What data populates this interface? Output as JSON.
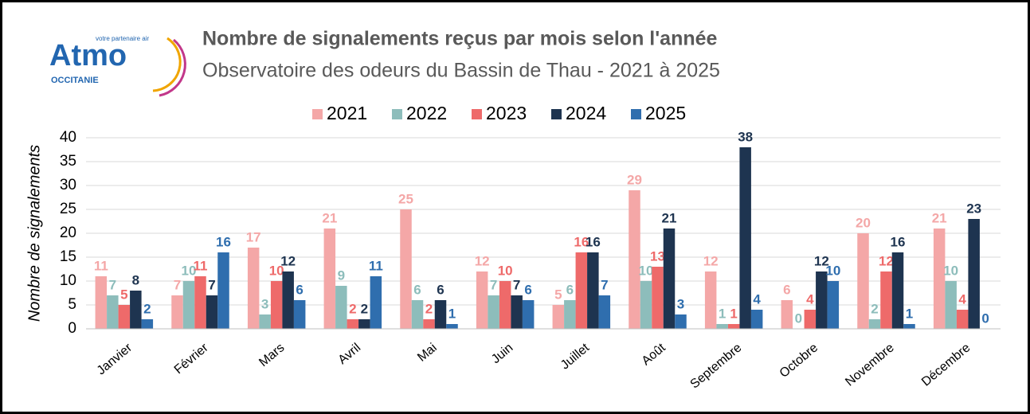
{
  "logo": {
    "name": "Atmo",
    "region": "OCCITANIE",
    "tagline": "votre partenaire air"
  },
  "chart_data": {
    "type": "bar",
    "title": "Nombre de signalements reçus par mois selon l'année",
    "subtitle": "Observatoire des odeurs du Bassin de Thau - 2021 à 2025",
    "y_label": "Nombre de signalements",
    "categories": [
      "Janvier",
      "Février",
      "Mars",
      "Avril",
      "Mai",
      "Juin",
      "Juillet",
      "Août",
      "Septembre",
      "Octobre",
      "Novembre",
      "Décembre"
    ],
    "series": [
      {
        "name": "2021",
        "color": "#f4a7a7",
        "values": [
          11,
          7,
          17,
          21,
          25,
          12,
          5,
          29,
          12,
          6,
          20,
          21
        ]
      },
      {
        "name": "2022",
        "color": "#8dbdbb",
        "values": [
          7,
          10,
          3,
          9,
          6,
          7,
          6,
          10,
          1,
          0,
          2,
          10
        ]
      },
      {
        "name": "2023",
        "color": "#ee6a6a",
        "values": [
          5,
          11,
          10,
          2,
          2,
          10,
          16,
          13,
          1,
          4,
          12,
          4
        ]
      },
      {
        "name": "2024",
        "color": "#1e3450",
        "values": [
          8,
          7,
          12,
          2,
          6,
          7,
          16,
          21,
          38,
          12,
          16,
          23
        ]
      },
      {
        "name": "2025",
        "color": "#2f6eae",
        "values": [
          2,
          16,
          6,
          11,
          1,
          6,
          7,
          3,
          4,
          10,
          1,
          0
        ]
      }
    ],
    "ylim": [
      0,
      40
    ],
    "yticks": [
      0,
      5,
      10,
      15,
      20,
      25,
      30,
      35,
      40
    ],
    "grid": true,
    "legend": "top"
  }
}
